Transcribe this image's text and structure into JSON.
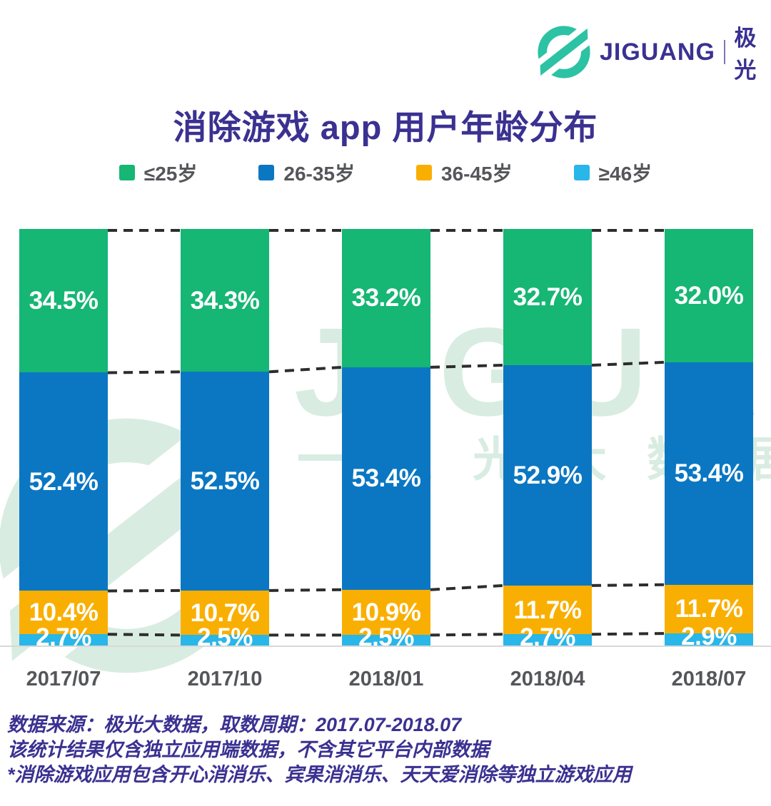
{
  "header": {
    "brand_latin": "JIGUANG",
    "brand_cn": "极光"
  },
  "title": "消除游戏 app 用户年龄分布",
  "watermark": {
    "latin": "JIGUANG",
    "cn": "极光大数据"
  },
  "chart_data": {
    "type": "bar",
    "stacked": true,
    "orientation": "vertical",
    "value_suffix": "%",
    "value_decimals": 1,
    "ylim": [
      0,
      100
    ],
    "legend_position": "top",
    "grid": false,
    "categories": [
      "2017/07",
      "2017/10",
      "2018/01",
      "2018/04",
      "2018/07"
    ],
    "series": [
      {
        "name": "≤25岁",
        "color": "#16b674",
        "values": [
          34.5,
          34.3,
          33.2,
          32.7,
          32.0
        ]
      },
      {
        "name": "26-35岁",
        "color": "#0b77c2",
        "values": [
          52.4,
          52.5,
          53.4,
          52.9,
          53.4
        ]
      },
      {
        "name": "36-45岁",
        "color": "#f9af02",
        "values": [
          10.4,
          10.7,
          10.9,
          11.7,
          11.7
        ]
      },
      {
        "name": "≥46岁",
        "color": "#29b6e8",
        "values": [
          2.7,
          2.5,
          2.5,
          2.7,
          2.9
        ]
      }
    ],
    "title": "消除游戏 app 用户年龄分布"
  },
  "footnotes": [
    "数据来源：极光大数据，取数周期：2017.07-2018.07",
    "该统计结果仅含独立应用端数据，不含其它平台内部数据",
    "*消除游戏应用包含开心消消乐、宾果消消乐、天天爱消除等独立游戏应用"
  ],
  "colors": {
    "brand_teal": "#2cc2a4",
    "brand_indigo": "#3a3191",
    "watermark_green": "#d9ece1",
    "axis_line": "#d8d8d8",
    "label_gray": "#55565a",
    "dash": "#2d2d2d"
  }
}
